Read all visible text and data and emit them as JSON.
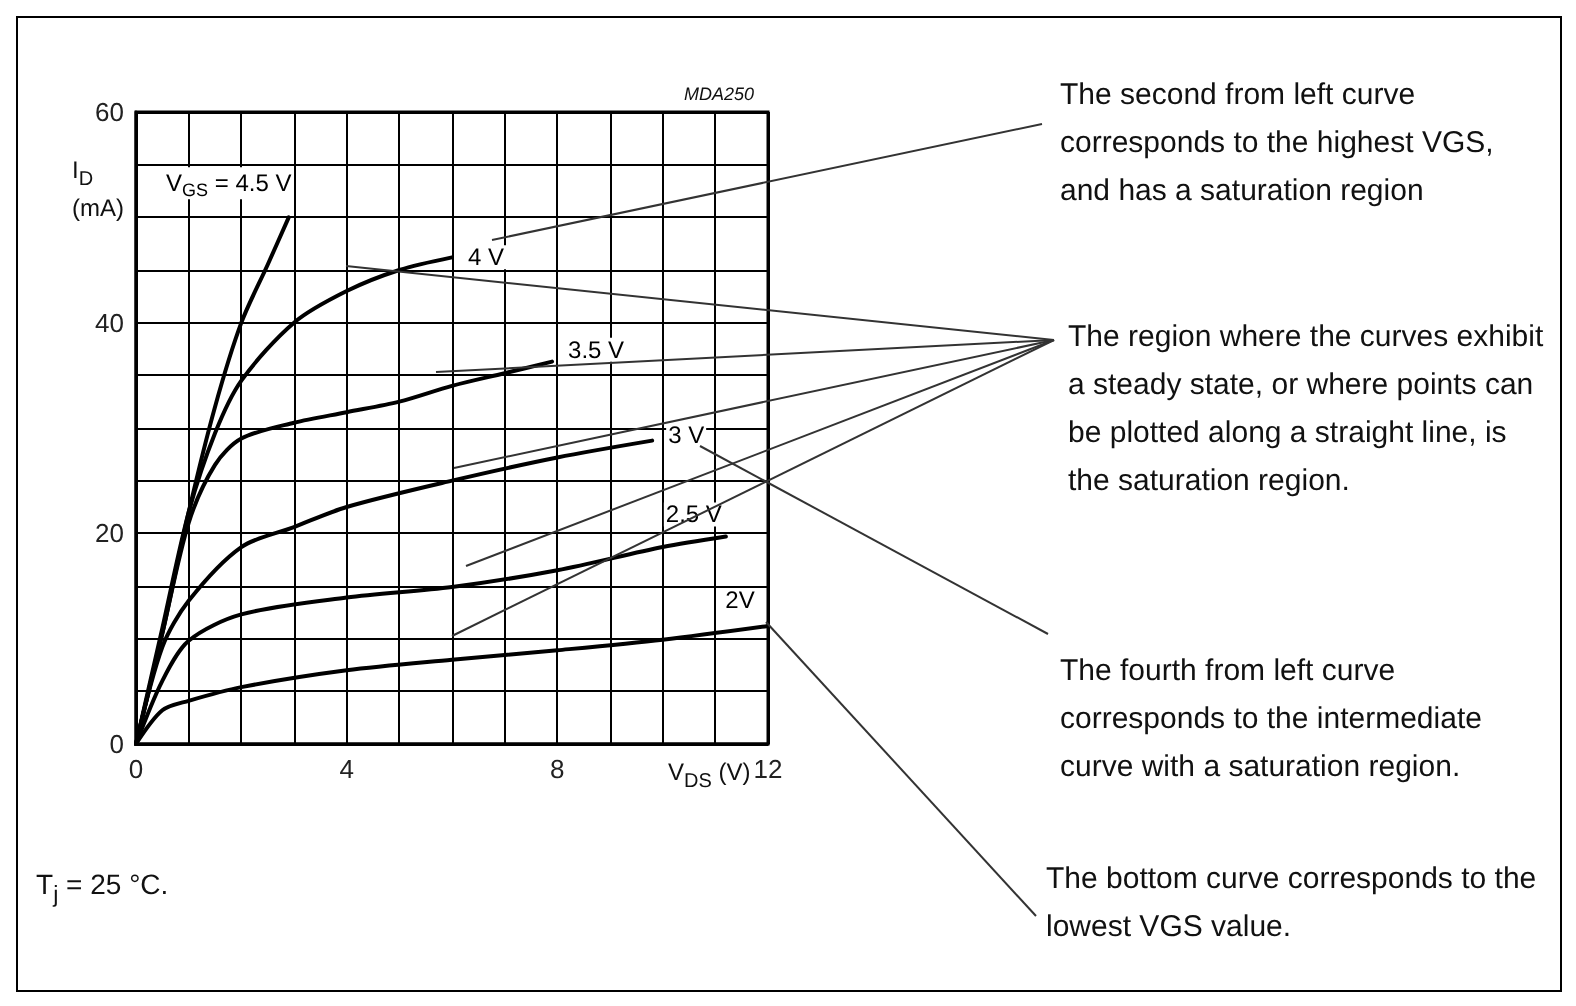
{
  "chart_data": {
    "type": "line",
    "xlabel": "V$_{DS}$ (V)",
    "ylabel": "I$_{D}$ (mA)",
    "xlim": [
      0,
      12
    ],
    "ylim": [
      0,
      60
    ],
    "xticks": [
      0,
      {
        "value": 1,
        "label": null
      },
      {
        "value": 2,
        "label": null
      },
      {
        "value": 3,
        "label": null
      },
      4,
      {
        "value": 5,
        "label": null
      },
      {
        "value": 6,
        "label": null
      },
      {
        "value": 7,
        "label": null
      },
      8,
      {
        "value": 9,
        "label": null
      },
      {
        "value": 10,
        "label": null
      },
      {
        "value": 11,
        "label": null
      },
      12
    ],
    "yticks": [
      0,
      {
        "value": 5,
        "label": null
      },
      {
        "value": 10,
        "label": null
      },
      {
        "value": 15,
        "label": null
      },
      20,
      {
        "value": 25,
        "label": null
      },
      {
        "value": 30,
        "label": null
      },
      {
        "value": 35,
        "label": null
      },
      40,
      {
        "value": 45,
        "label": null
      },
      {
        "value": 50,
        "label": null
      },
      {
        "value": 55,
        "label": null
      },
      60
    ],
    "grid": true,
    "marker": "none",
    "line_style": "solid",
    "series": [
      {
        "name": "V$_{GS}$ = 4.5 V",
        "color": "#000000",
        "x": [
          0,
          0.5,
          1,
          1.5,
          2,
          2.5,
          2.9
        ],
        "values": [
          0,
          10.5,
          22,
          32,
          40,
          45.5,
          50
        ]
      },
      {
        "name": "4 V",
        "color": "#000000",
        "x": [
          0,
          0.5,
          1,
          1.5,
          2,
          3,
          4,
          5,
          6
        ],
        "values": [
          0,
          11,
          22,
          29.5,
          34.5,
          40,
          43,
          45,
          46.2
        ]
      },
      {
        "name": "3.5 V",
        "color": "#000000",
        "x": [
          0,
          0.5,
          1,
          1.5,
          2,
          3,
          4,
          5,
          6,
          7,
          7.9
        ],
        "values": [
          0,
          10.5,
          21,
          26.5,
          29,
          30.5,
          31.5,
          32.5,
          34,
          35.2,
          36.3
        ]
      },
      {
        "name": "3 V",
        "color": "#000000",
        "x": [
          0,
          0.5,
          1,
          2,
          3,
          4,
          6,
          8,
          9.8
        ],
        "values": [
          0,
          9.2,
          13.6,
          18.7,
          20.6,
          22.5,
          25,
          27.2,
          28.8
        ]
      },
      {
        "name": "2.5 V",
        "color": "#000000",
        "x": [
          0,
          0.5,
          1,
          2,
          4,
          6,
          8,
          10,
          11.2
        ],
        "values": [
          0,
          6,
          9.8,
          12.3,
          13.9,
          14.9,
          16.5,
          18.7,
          19.7
        ]
      },
      {
        "name": "2V",
        "color": "#000000",
        "x": [
          0,
          0.5,
          1,
          2,
          4,
          6,
          8,
          10,
          12
        ],
        "values": [
          0,
          3.2,
          4.1,
          5.4,
          7,
          8,
          8.9,
          9.9,
          11.2
        ]
      }
    ],
    "annotations": [
      "MDA250",
      "The second from left curve corresponds to the highest VGS, and has a saturation region",
      "The region where the curves exhibit a steady state, or where points can be plotted along a straight line, is the saturation region.",
      "The fourth from left curve corresponds to the intermediate curve with a saturation region.",
      "The bottom curve corresponds to the lowest VGS value.",
      "T$_{j}$ = 25 °C."
    ]
  }
}
